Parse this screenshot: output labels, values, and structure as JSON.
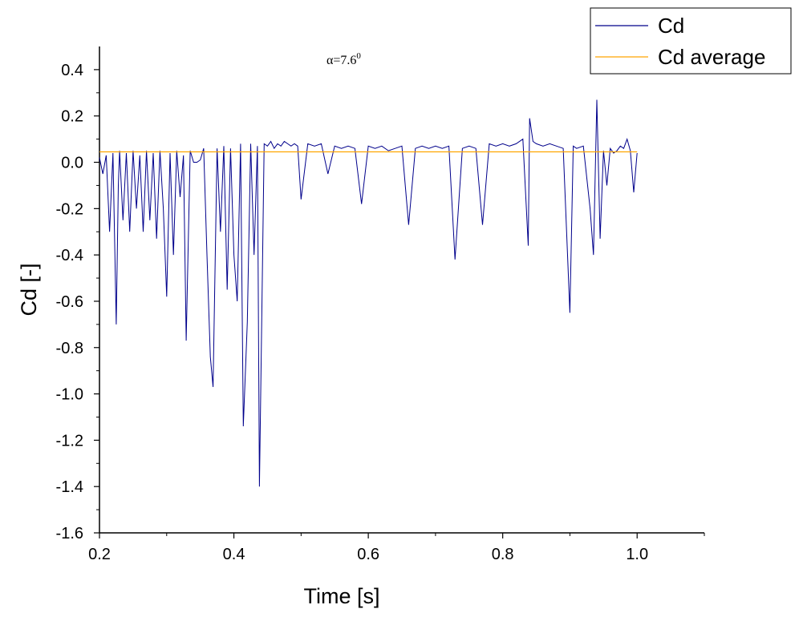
{
  "chart_data": {
    "type": "line",
    "xlabel": "Time [s]",
    "ylabel": "Cd [-]",
    "xlim": [
      0.2,
      1.1
    ],
    "ylim": [
      -1.6,
      0.5
    ],
    "xticks": [
      "0.2",
      "0.4",
      "0.6",
      "0.8",
      "1.0"
    ],
    "yticks": [
      "0.4",
      "0.2",
      "0.0",
      "-0.2",
      "-0.4",
      "-0.6",
      "-0.8",
      "-1.0",
      "-1.2",
      "-1.4",
      "-1.6"
    ],
    "annotation": {
      "base": "α=7.6",
      "sup": "0"
    },
    "legend_position": "top-right",
    "grid": false,
    "series": [
      {
        "name": "Cd",
        "color": "#00008b",
        "x": [
          0.2,
          0.205,
          0.21,
          0.215,
          0.22,
          0.225,
          0.228,
          0.23,
          0.235,
          0.24,
          0.245,
          0.25,
          0.255,
          0.26,
          0.265,
          0.27,
          0.275,
          0.28,
          0.285,
          0.29,
          0.295,
          0.3,
          0.305,
          0.31,
          0.315,
          0.32,
          0.325,
          0.329,
          0.335,
          0.34,
          0.345,
          0.35,
          0.355,
          0.36,
          0.365,
          0.369,
          0.375,
          0.38,
          0.385,
          0.39,
          0.395,
          0.4,
          0.405,
          0.41,
          0.414,
          0.42,
          0.425,
          0.43,
          0.435,
          0.438,
          0.445,
          0.45,
          0.455,
          0.46,
          0.465,
          0.47,
          0.475,
          0.48,
          0.485,
          0.49,
          0.495,
          0.5,
          0.51,
          0.52,
          0.53,
          0.54,
          0.55,
          0.56,
          0.57,
          0.58,
          0.59,
          0.6,
          0.61,
          0.62,
          0.63,
          0.64,
          0.65,
          0.66,
          0.67,
          0.68,
          0.69,
          0.7,
          0.71,
          0.72,
          0.729,
          0.74,
          0.75,
          0.76,
          0.77,
          0.78,
          0.79,
          0.8,
          0.81,
          0.82,
          0.83,
          0.838,
          0.84,
          0.845,
          0.85,
          0.86,
          0.87,
          0.88,
          0.89,
          0.9,
          0.905,
          0.91,
          0.92,
          0.93,
          0.935,
          0.94,
          0.945,
          0.95,
          0.955,
          0.96,
          0.965,
          0.97,
          0.975,
          0.98,
          0.985,
          0.99,
          0.995,
          1.0
        ],
        "values": [
          0.02,
          -0.05,
          0.03,
          -0.3,
          0.04,
          -0.7,
          -0.1,
          0.05,
          -0.25,
          0.04,
          -0.3,
          0.05,
          -0.2,
          0.03,
          -0.3,
          0.05,
          -0.25,
          0.04,
          -0.33,
          0.05,
          -0.2,
          -0.58,
          0.04,
          -0.4,
          0.05,
          -0.15,
          0.03,
          -0.77,
          0.05,
          0.0,
          0.0,
          0.01,
          0.06,
          -0.4,
          -0.84,
          -0.97,
          0.06,
          -0.3,
          0.07,
          -0.55,
          0.06,
          -0.4,
          -0.6,
          0.08,
          -1.14,
          -0.69,
          0.08,
          -0.4,
          0.07,
          -1.4,
          0.08,
          0.07,
          0.09,
          0.06,
          0.08,
          0.07,
          0.09,
          0.08,
          0.07,
          0.08,
          0.07,
          -0.16,
          0.08,
          0.07,
          0.08,
          -0.05,
          0.07,
          0.06,
          0.07,
          0.06,
          -0.18,
          0.07,
          0.06,
          0.07,
          0.05,
          0.06,
          0.07,
          -0.27,
          0.06,
          0.07,
          0.06,
          0.07,
          0.06,
          0.07,
          -0.42,
          0.06,
          0.07,
          0.06,
          -0.27,
          0.08,
          0.07,
          0.08,
          0.07,
          0.08,
          0.1,
          -0.36,
          0.19,
          0.09,
          0.08,
          0.07,
          0.08,
          0.07,
          0.06,
          -0.65,
          0.07,
          0.06,
          0.07,
          -0.2,
          -0.4,
          0.27,
          -0.33,
          0.05,
          -0.1,
          0.06,
          0.04,
          0.05,
          0.07,
          0.06,
          0.1,
          0.05,
          -0.13,
          0.04
        ]
      },
      {
        "name": "Cd average",
        "color": "#ffa500",
        "x": [
          0.2,
          1.0
        ],
        "values": [
          0.045,
          0.045
        ]
      }
    ]
  }
}
